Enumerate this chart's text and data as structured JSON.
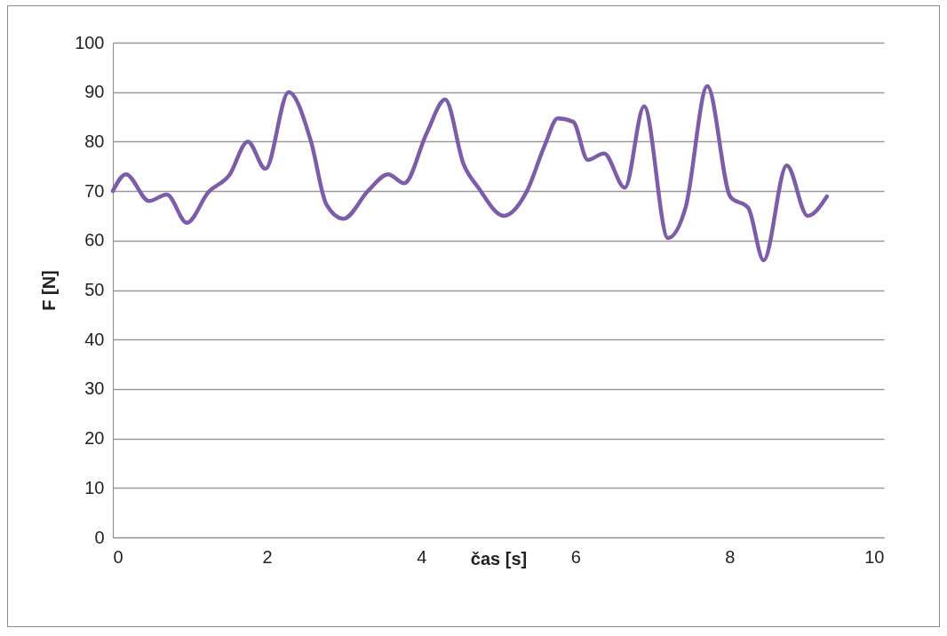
{
  "chart_data": {
    "type": "line",
    "xlabel": "čas [s]",
    "ylabel": "F [N]",
    "x": [
      0,
      0.17,
      0.47,
      0.7,
      0.96,
      1.24,
      1.51,
      1.75,
      1.98,
      2.28,
      2.57,
      2.77,
      2.99,
      3.32,
      3.57,
      3.78,
      4.07,
      4.31,
      4.55,
      4.74,
      5.07,
      5.37,
      5.6,
      5.77,
      5.97,
      6.16,
      6.37,
      6.64,
      6.89,
      7.2,
      7.43,
      7.71,
      8.01,
      8.24,
      8.44,
      8.74,
      9.01,
      9.26
    ],
    "series": [
      {
        "color": "#7b5ea7",
        "values": [
          70,
          73.4,
          68,
          69.3,
          63.6,
          69.8,
          73.2,
          80,
          74.5,
          90,
          80,
          67.3,
          64.4,
          70.2,
          73.4,
          71.6,
          81.7,
          88.5,
          75.4,
          70.7,
          65,
          70,
          79.2,
          84.7,
          84,
          76.3,
          77.6,
          70.7,
          87.1,
          60.5,
          66.8,
          91.2,
          68.8,
          66.6,
          56,
          75.2,
          65,
          68.9
        ]
      }
    ],
    "xlim": [
      0,
      10
    ],
    "xticks": [
      0,
      2,
      4,
      6,
      8,
      10
    ],
    "ylim": [
      0,
      100
    ],
    "yticks": [
      0,
      10,
      20,
      30,
      40,
      50,
      60,
      70,
      80,
      90,
      100
    ],
    "grid": "y",
    "marker": "none",
    "line_style": "solid"
  }
}
